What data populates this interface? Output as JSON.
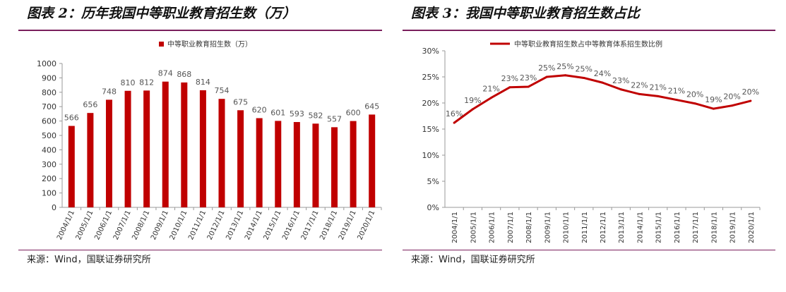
{
  "left_panel": {
    "title": "图表 2：历年我国中等职业教育招生数（万）",
    "source": "来源：Wind，国联证券研究所"
  },
  "right_panel": {
    "title": "图表 3：我国中等职业教育招生数占比",
    "source": "来源：Wind，国联证券研究所"
  },
  "colors": {
    "series": "#c00000",
    "rule": "#7a1f5c",
    "axis": "#999999"
  },
  "chart_data": [
    {
      "type": "bar",
      "legend_position": "top",
      "grid": false,
      "categories": [
        "2004/1/1",
        "2005/1/1",
        "2006/1/1",
        "2007/1/1",
        "2008/1/1",
        "2009/1/1",
        "2010/1/1",
        "2011/1/1",
        "2012/1/1",
        "2013/1/1",
        "2014/1/1",
        "2015/1/1",
        "2016/1/1",
        "2017/1/1",
        "2018/1/1",
        "2019/1/1",
        "2020/1/1"
      ],
      "series": [
        {
          "name": "中等职业教育招生数（万）",
          "values": [
            566,
            656,
            748,
            810,
            812,
            874,
            868,
            814,
            754,
            675,
            620,
            601,
            593,
            582,
            557,
            600,
            645
          ]
        }
      ],
      "ylim": [
        0,
        1000
      ],
      "yticks": [
        0,
        100,
        200,
        300,
        400,
        500,
        600,
        700,
        800,
        900,
        1000
      ],
      "data_labels": [
        "566",
        "656",
        "748",
        "810",
        "812",
        "874",
        "868",
        "814",
        "754",
        "675",
        "620",
        "601",
        "593",
        "582",
        "557",
        "600",
        "645"
      ]
    },
    {
      "type": "line",
      "legend_position": "top",
      "grid": false,
      "categories": [
        "2004/1/1",
        "2005/1/1",
        "2006/1/1",
        "2007/1/1",
        "2008/1/1",
        "2009/1/1",
        "2010/1/1",
        "2011/1/1",
        "2012/1/1",
        "2013/1/1",
        "2014/1/1",
        "2015/1/1",
        "2016/1/1",
        "2017/1/1",
        "2018/1/1",
        "2019/1/1",
        "2020/1/1"
      ],
      "series": [
        {
          "name": "中等职业教育招生数占中等教育体系招生数比例",
          "values": [
            16.2,
            18.8,
            21.0,
            23.0,
            23.1,
            25.0,
            25.3,
            24.8,
            23.9,
            22.6,
            21.7,
            21.3,
            20.6,
            19.9,
            18.9,
            19.5,
            20.4
          ]
        }
      ],
      "ylim": [
        0,
        30
      ],
      "yticks": [
        "0%",
        "5%",
        "10%",
        "15%",
        "20%",
        "25%",
        "30%"
      ],
      "data_labels": [
        "16%",
        "19%",
        "21%",
        "23%",
        "23%",
        "25%",
        "25%",
        "25%",
        "24%",
        "23%",
        "22%",
        "21%",
        "21%",
        "20%",
        "19%",
        "20%",
        "20%"
      ]
    }
  ]
}
